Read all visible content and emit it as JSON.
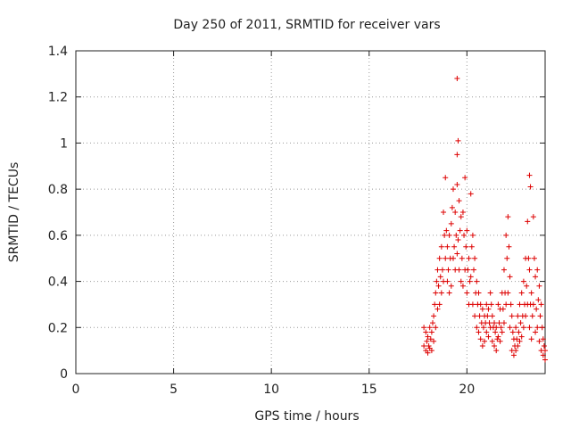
{
  "chart_data": {
    "type": "scatter",
    "title": "Day 250 of 2011, SRMTID for receiver vars",
    "xlabel": "GPS time / hours",
    "ylabel": "SRMTID / TECUs",
    "xlim": [
      0,
      24
    ],
    "ylim": [
      0,
      1.4
    ],
    "xticks": [
      "0",
      "5",
      "10",
      "15",
      "20"
    ],
    "yticks": [
      "0",
      "0.2",
      "0.4",
      "0.6",
      "0.8",
      "1",
      "1.2",
      "1.4"
    ],
    "grid": true,
    "marker": "+",
    "color": "#dd0000",
    "series": [
      {
        "x": [
          17.8,
          17.8,
          17.9,
          17.9,
          17.95,
          18.0,
          18.0,
          18.05,
          18.1,
          18.1,
          18.15,
          18.2,
          18.2,
          18.25,
          18.3,
          18.3,
          18.35,
          18.4,
          18.4,
          18.45,
          18.5,
          18.5,
          18.55,
          18.6,
          18.6,
          18.65,
          18.7,
          18.7,
          18.75,
          18.8,
          18.8,
          18.85,
          18.9,
          18.9,
          18.95,
          19.0,
          19.0,
          19.05,
          19.1,
          19.1,
          19.15,
          19.2,
          19.2,
          19.25,
          19.3,
          19.3,
          19.35,
          19.4,
          19.4,
          19.45,
          19.5,
          19.5,
          19.55,
          19.6,
          19.6,
          19.65,
          19.7,
          19.7,
          19.75,
          19.8,
          19.8,
          19.85,
          19.9,
          19.9,
          19.95,
          20.0,
          20.0,
          20.05,
          20.1,
          20.1,
          20.15,
          20.2,
          20.2,
          20.25,
          20.3,
          20.3,
          20.35,
          20.4,
          20.4,
          20.45,
          20.5,
          20.5,
          20.55,
          20.6,
          20.6,
          20.65,
          20.7,
          20.7,
          20.75,
          20.8,
          20.8,
          20.85,
          20.9,
          20.9,
          20.95,
          21.0,
          21.0,
          21.05,
          21.1,
          21.1,
          21.15,
          21.2,
          21.2,
          21.25,
          21.3,
          21.3,
          21.35,
          21.4,
          21.4,
          21.45,
          21.5,
          21.5,
          21.55,
          21.6,
          21.6,
          21.65,
          21.7,
          21.7,
          21.75,
          21.8,
          21.8,
          21.85,
          21.9,
          21.9,
          21.95,
          22.0,
          22.0,
          22.05,
          22.1,
          22.1,
          22.15,
          22.2,
          22.2,
          22.25,
          22.3,
          22.3,
          22.35,
          22.4,
          22.4,
          22.45,
          22.5,
          22.5,
          22.55,
          22.6,
          22.6,
          22.65,
          22.7,
          22.7,
          22.75,
          22.8,
          22.8,
          22.85,
          22.9,
          22.9,
          22.95,
          23.0,
          23.0,
          23.05,
          23.1,
          23.1,
          23.15,
          23.2,
          23.2,
          23.25,
          23.3,
          23.3,
          23.35,
          23.4,
          23.4,
          23.45,
          23.5,
          23.5,
          23.55,
          23.6,
          23.6,
          23.65,
          23.7,
          23.7,
          23.75,
          23.8,
          23.8,
          23.85,
          23.9,
          23.9,
          23.95,
          24.0,
          24.0,
          19.5,
          19.55,
          19.5,
          23.2,
          23.25
        ],
        "y": [
          0.2,
          0.12,
          0.18,
          0.1,
          0.14,
          0.16,
          0.09,
          0.12,
          0.2,
          0.11,
          0.15,
          0.18,
          0.1,
          0.22,
          0.25,
          0.14,
          0.3,
          0.35,
          0.2,
          0.4,
          0.45,
          0.28,
          0.38,
          0.5,
          0.3,
          0.42,
          0.55,
          0.35,
          0.45,
          0.7,
          0.4,
          0.6,
          0.85,
          0.5,
          0.62,
          0.55,
          0.4,
          0.45,
          0.6,
          0.35,
          0.5,
          0.65,
          0.38,
          0.72,
          0.8,
          0.5,
          0.55,
          0.7,
          0.45,
          0.6,
          0.82,
          0.52,
          0.58,
          0.75,
          0.45,
          0.62,
          0.68,
          0.4,
          0.5,
          0.7,
          0.38,
          0.6,
          0.85,
          0.45,
          0.55,
          0.62,
          0.35,
          0.45,
          0.5,
          0.3,
          0.4,
          0.78,
          0.42,
          0.55,
          0.6,
          0.3,
          0.45,
          0.5,
          0.25,
          0.35,
          0.4,
          0.2,
          0.3,
          0.35,
          0.18,
          0.25,
          0.3,
          0.15,
          0.22,
          0.28,
          0.12,
          0.2,
          0.25,
          0.14,
          0.22,
          0.3,
          0.18,
          0.25,
          0.28,
          0.16,
          0.22,
          0.35,
          0.2,
          0.3,
          0.25,
          0.14,
          0.2,
          0.22,
          0.12,
          0.18,
          0.2,
          0.1,
          0.15,
          0.3,
          0.16,
          0.22,
          0.28,
          0.14,
          0.2,
          0.35,
          0.18,
          0.28,
          0.45,
          0.22,
          0.35,
          0.6,
          0.3,
          0.5,
          0.68,
          0.35,
          0.55,
          0.42,
          0.2,
          0.3,
          0.25,
          0.1,
          0.18,
          0.15,
          0.08,
          0.12,
          0.2,
          0.1,
          0.15,
          0.25,
          0.12,
          0.18,
          0.3,
          0.14,
          0.22,
          0.35,
          0.16,
          0.25,
          0.4,
          0.2,
          0.3,
          0.5,
          0.25,
          0.38,
          0.66,
          0.3,
          0.5,
          0.45,
          0.2,
          0.3,
          0.35,
          0.15,
          0.25,
          0.68,
          0.3,
          0.5,
          0.42,
          0.18,
          0.28,
          0.45,
          0.2,
          0.32,
          0.38,
          0.14,
          0.25,
          0.3,
          0.1,
          0.2,
          0.15,
          0.08,
          0.12,
          0.1,
          0.06,
          1.28,
          1.01,
          0.95,
          0.86,
          0.81
        ]
      }
    ]
  }
}
